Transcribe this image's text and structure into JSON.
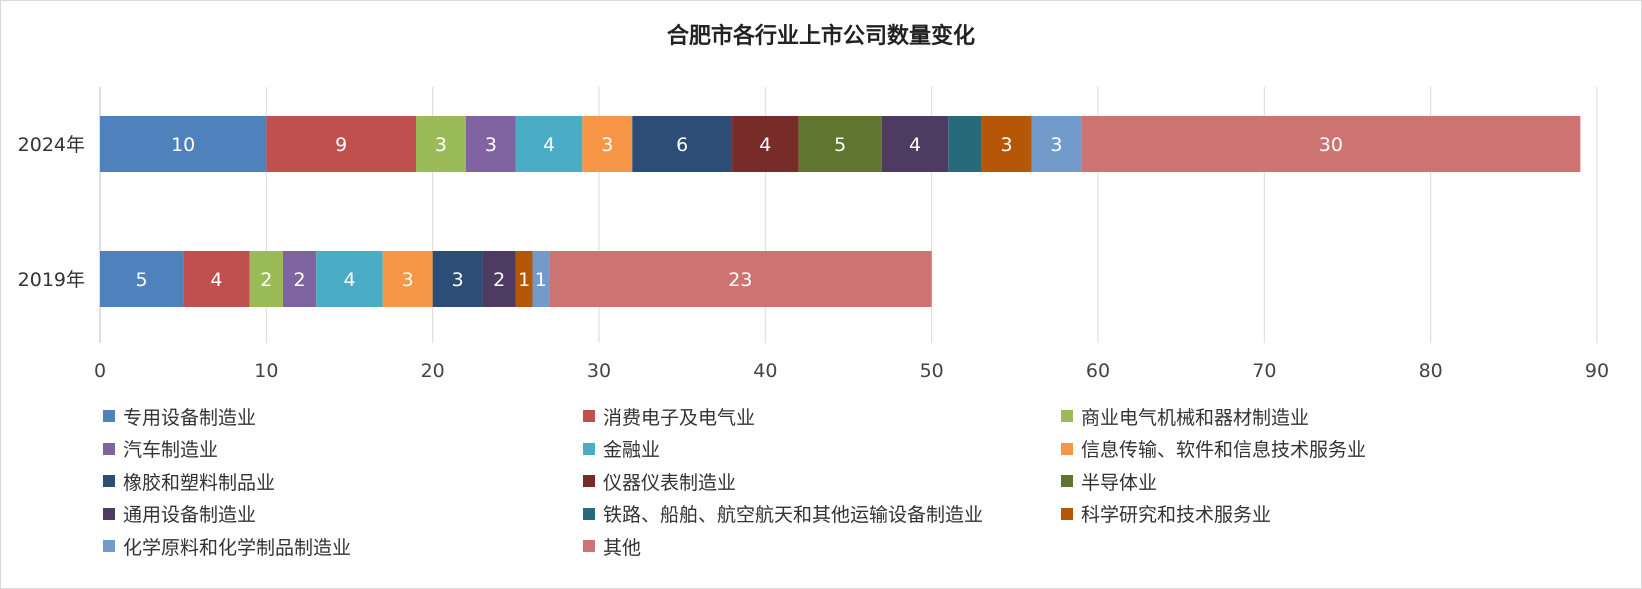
{
  "chart_data": {
    "type": "bar",
    "orientation": "horizontal",
    "stacked": true,
    "title": "合肥市各行业上市公司数量变化",
    "categories": [
      "2024年",
      "2019年"
    ],
    "xlim": [
      0,
      90
    ],
    "xticks": [
      0,
      10,
      20,
      30,
      40,
      50,
      60,
      70,
      80,
      90
    ],
    "grid": "vertical",
    "legend_position": "bottom",
    "series": [
      {
        "name": "专用设备制造业",
        "color": "#4f81bd",
        "values": [
          10,
          5
        ]
      },
      {
        "name": "消费电子及电气业",
        "color": "#c0504d",
        "values": [
          9,
          4
        ]
      },
      {
        "name": "商业电气机械和器材制造业",
        "color": "#9bbb59",
        "values": [
          3,
          2
        ]
      },
      {
        "name": "汽车制造业",
        "color": "#8064a2",
        "values": [
          3,
          2
        ]
      },
      {
        "name": "金融业",
        "color": "#4bacc6",
        "values": [
          4,
          4
        ]
      },
      {
        "name": "信息传输、软件和信息技术服务业",
        "color": "#f79646",
        "values": [
          3,
          3
        ]
      },
      {
        "name": "橡胶和塑料制品业",
        "color": "#2c4d75",
        "values": [
          6,
          3
        ]
      },
      {
        "name": "仪器仪表制造业",
        "color": "#772c2a",
        "values": [
          4,
          0
        ]
      },
      {
        "name": "半导体业",
        "color": "#5f7530",
        "values": [
          5,
          0
        ]
      },
      {
        "name": "通用设备制造业",
        "color": "#4d3b62",
        "values": [
          4,
          2
        ]
      },
      {
        "name": "铁路、船舶、航空航天和其他运输设备制造业",
        "color": "#276a7c",
        "values": [
          2,
          0
        ]
      },
      {
        "name": "科学研究和技术服务业",
        "color": "#b65708",
        "values": [
          3,
          1
        ]
      },
      {
        "name": "化学原料和化学制品制造业",
        "color": "#729aca",
        "values": [
          3,
          1
        ]
      },
      {
        "name": "其他",
        "color": "#cd7371",
        "values": [
          30,
          23
        ]
      }
    ],
    "data_labels": {
      "2024年": [
        "10",
        "9",
        "3",
        "3",
        "4",
        "3",
        "6",
        "4",
        "5",
        "4",
        "",
        "3",
        "3",
        "30"
      ],
      "2019年": [
        "5",
        "4",
        "2",
        "2",
        "4",
        "3",
        "3",
        "",
        "",
        "2",
        "",
        "1",
        "1",
        "23"
      ]
    }
  }
}
